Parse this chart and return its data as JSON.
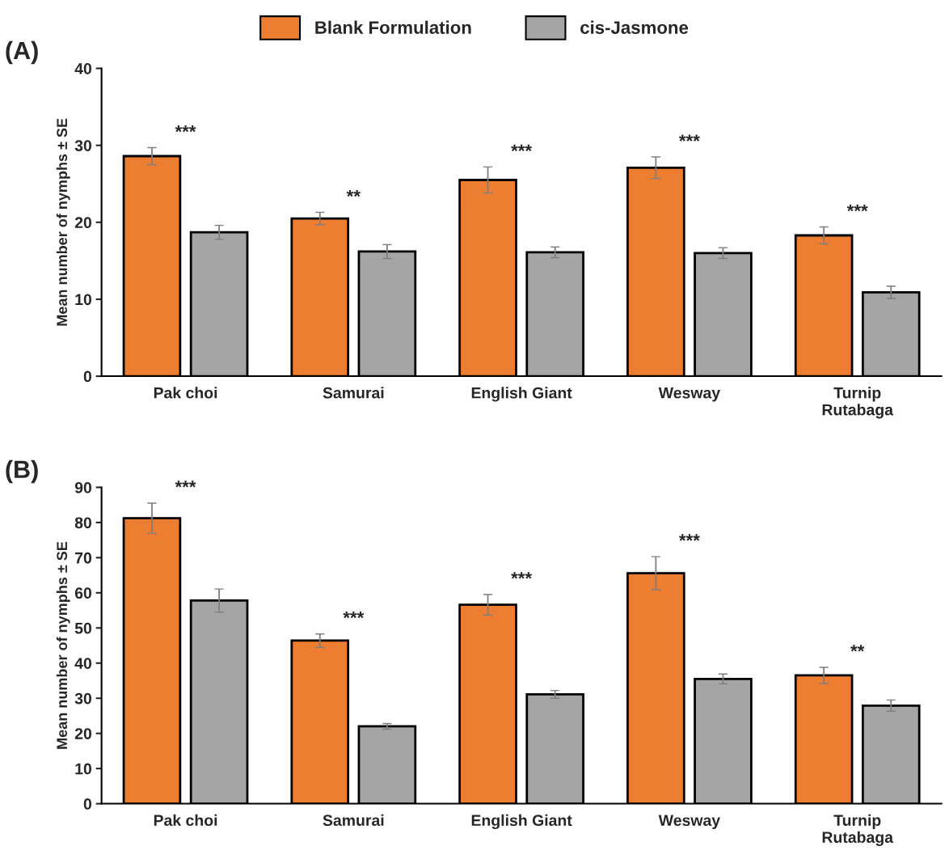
{
  "chart_data": [
    {
      "type": "bar",
      "title": "(A)",
      "ylabel": "Mean number of nymphs ± SE",
      "categories": [
        "Pak choi",
        "Samurai",
        "English Giant",
        "Wesway",
        "Turnip\nRutabaga"
      ],
      "series": [
        {
          "name": "Blank Formulation",
          "color": "#ed7d31",
          "values": [
            28.6,
            20.5,
            25.5,
            27.1,
            18.3
          ],
          "errors": [
            1.1,
            0.8,
            1.7,
            1.4,
            1.1
          ]
        },
        {
          "name": "cis-Jasmone",
          "color": "#a5a5a5",
          "values": [
            18.7,
            16.2,
            16.1,
            16.0,
            10.9
          ],
          "errors": [
            0.9,
            0.9,
            0.7,
            0.7,
            0.8
          ]
        }
      ],
      "ylim": [
        0,
        40
      ],
      "yticks": [
        0,
        10,
        20,
        30,
        40
      ],
      "grid": false,
      "legend": "top",
      "annotations": [
        "***",
        "**",
        "***",
        "***",
        "***"
      ]
    },
    {
      "type": "bar",
      "title": "(B)",
      "ylabel": "Mean number of nymphs ± SE",
      "categories": [
        "Pak choi",
        "Samurai",
        "English Giant",
        "Wesway",
        "Turnip\nRutabaga"
      ],
      "series": [
        {
          "color": "#ed7d31",
          "values": [
            81.2,
            46.4,
            56.6,
            65.6,
            36.5
          ],
          "errors": [
            4.3,
            1.9,
            2.9,
            4.7,
            2.3
          ]
        },
        {
          "color": "#a5a5a5",
          "values": [
            57.8,
            22.0,
            31.1,
            35.5,
            27.9
          ],
          "errors": [
            3.3,
            0.8,
            1.1,
            1.4,
            1.6
          ]
        }
      ],
      "ylim": [
        0,
        90
      ],
      "yticks": [
        0,
        10,
        20,
        30,
        40,
        50,
        60,
        70,
        80,
        90
      ],
      "grid": false,
      "legend": false,
      "annotations": [
        "***",
        "***",
        "***",
        "***",
        "**"
      ]
    }
  ]
}
